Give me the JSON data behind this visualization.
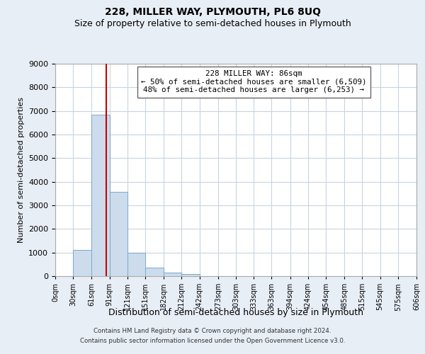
{
  "title": "228, MILLER WAY, PLYMOUTH, PL6 8UQ",
  "subtitle": "Size of property relative to semi-detached houses in Plymouth",
  "xlabel": "Distribution of semi-detached houses by size in Plymouth",
  "ylabel": "Number of semi-detached properties",
  "bar_edges": [
    0,
    30,
    61,
    91,
    121,
    151,
    182,
    212,
    242,
    273,
    303,
    333,
    363,
    394,
    424,
    454,
    485,
    515,
    545,
    575,
    606
  ],
  "bar_heights": [
    0,
    1100,
    6850,
    3560,
    980,
    350,
    150,
    100,
    0,
    0,
    0,
    0,
    0,
    0,
    0,
    0,
    0,
    0,
    0,
    0
  ],
  "bar_color": "#ccdcec",
  "bar_edge_color": "#7aaac8",
  "vline_x": 86,
  "vline_color": "#cc0000",
  "ylim": [
    0,
    9000
  ],
  "yticks": [
    0,
    1000,
    2000,
    3000,
    4000,
    5000,
    6000,
    7000,
    8000,
    9000
  ],
  "xtick_labels": [
    "0sqm",
    "30sqm",
    "61sqm",
    "91sqm",
    "121sqm",
    "151sqm",
    "182sqm",
    "212sqm",
    "242sqm",
    "273sqm",
    "303sqm",
    "333sqm",
    "363sqm",
    "394sqm",
    "424sqm",
    "454sqm",
    "485sqm",
    "515sqm",
    "545sqm",
    "575sqm",
    "606sqm"
  ],
  "annotation_title": "228 MILLER WAY: 86sqm",
  "annotation_line1": "← 50% of semi-detached houses are smaller (6,509)",
  "annotation_line2": "48% of semi-detached houses are larger (6,253) →",
  "footer1": "Contains HM Land Registry data © Crown copyright and database right 2024.",
  "footer2": "Contains public sector information licensed under the Open Government Licence v3.0.",
  "bg_color": "#e8eef6",
  "plot_bg_color": "#ffffff",
  "grid_color": "#c8d4e0",
  "title_fontsize": 10,
  "subtitle_fontsize": 9
}
